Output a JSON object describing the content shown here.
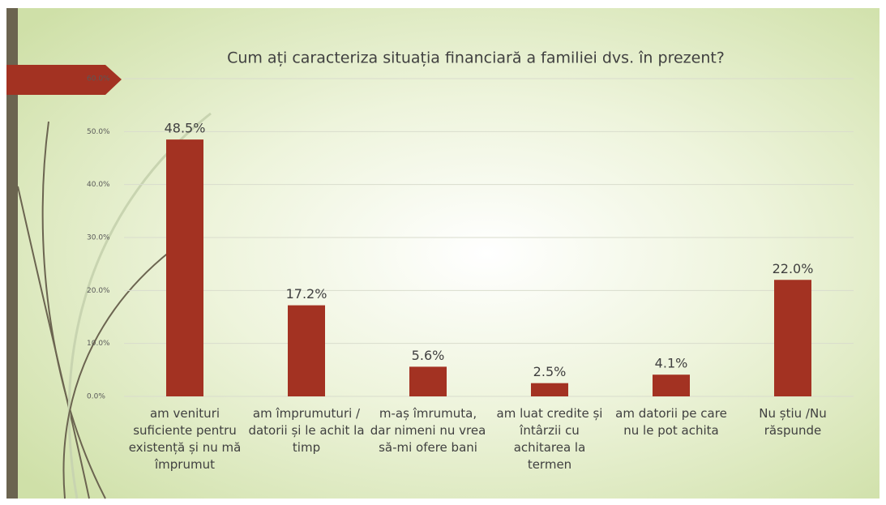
{
  "chart_data": {
    "type": "bar",
    "title": "Cum ați caracteriza situația financiară a familiei dvs. în prezent?",
    "categories": [
      "am venituri suficiente pentru existență și nu mă împrumut",
      "am împrumuturi / datorii și le achit la timp",
      "m-aș îmrumuta, dar nimeni nu vrea să-mi ofere bani",
      "am luat credite și întârzii cu achitarea la termen",
      "am datorii pe care nu le pot achita",
      "Nu știu /Nu răspunde"
    ],
    "values": [
      48.5,
      17.2,
      5.6,
      2.5,
      4.1,
      22.0
    ],
    "value_labels": [
      "48.5%",
      "17.2%",
      "5.6%",
      "2.5%",
      "4.1%",
      "22.0%"
    ],
    "color": "#a33222",
    "ylim": [
      0,
      60
    ],
    "yticks": [
      {
        "value": 0,
        "label": "0.0%"
      },
      {
        "value": 10,
        "label": "10.0%"
      },
      {
        "value": 20,
        "label": "20.0%"
      },
      {
        "value": 30,
        "label": "30.0%"
      },
      {
        "value": 40,
        "label": "40.0%"
      },
      {
        "value": 50,
        "label": "50.0%"
      },
      {
        "value": 60,
        "label": "60.0%"
      }
    ],
    "grid": true
  }
}
